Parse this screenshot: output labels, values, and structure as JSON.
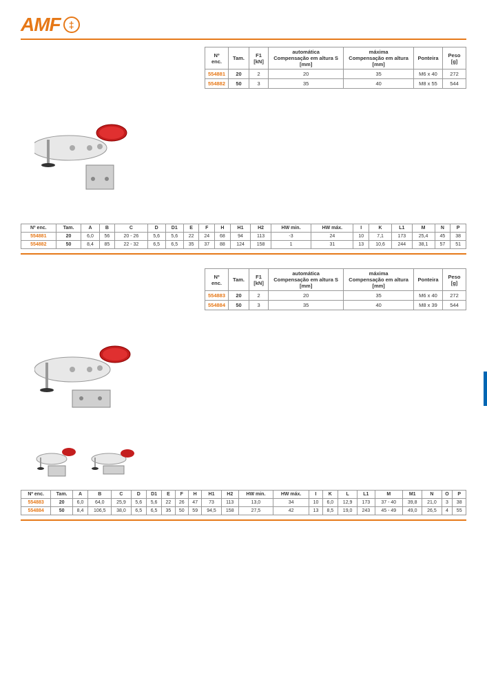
{
  "logo": {
    "text": "AMF"
  },
  "table1": {
    "headers": [
      "Nº enc.",
      "Tam.",
      "F1\n[kN]",
      "automática\nCompensação em altura S\n[mm]",
      "máxima\nCompensação em altura\n[mm]",
      "Ponteira",
      "Peso\n[g]"
    ],
    "rows": [
      [
        "554881",
        "20",
        "2",
        "20",
        "35",
        "M6 x 40",
        "272"
      ],
      [
        "554882",
        "50",
        "3",
        "35",
        "40",
        "M8 x 55",
        "544"
      ]
    ]
  },
  "table2": {
    "headers": [
      "Nº enc.",
      "Tam.",
      "A",
      "B",
      "C",
      "D",
      "D1",
      "E",
      "F",
      "H",
      "H1",
      "H2",
      "HW min.",
      "HW máx.",
      "I",
      "K",
      "L1",
      "M",
      "N",
      "P"
    ],
    "rows": [
      [
        "554881",
        "20",
        "6,0",
        "56",
        "20 - 26",
        "5,6",
        "5,6",
        "22",
        "24",
        "68",
        "94",
        "113",
        "-3",
        "24",
        "10",
        "7,1",
        "173",
        "25,4",
        "45",
        "38"
      ],
      [
        "554882",
        "50",
        "8,4",
        "85",
        "22 - 32",
        "6,5",
        "6,5",
        "35",
        "37",
        "88",
        "124",
        "158",
        "1",
        "31",
        "13",
        "10,6",
        "244",
        "38,1",
        "57",
        "51"
      ]
    ]
  },
  "table3": {
    "headers": [
      "Nº enc.",
      "Tam.",
      "F1\n[kN]",
      "automática\nCompensação em altura S\n[mm]",
      "máxima\nCompensação em altura\n[mm]",
      "Ponteira",
      "Peso\n[g]"
    ],
    "rows": [
      [
        "554883",
        "20",
        "2",
        "20",
        "35",
        "M6 x 40",
        "272"
      ],
      [
        "554884",
        "50",
        "3",
        "35",
        "40",
        "M8 x 39",
        "544"
      ]
    ]
  },
  "table4": {
    "headers": [
      "Nº enc.",
      "Tam.",
      "A",
      "B",
      "C",
      "D",
      "D1",
      "E",
      "F",
      "H",
      "H1",
      "H2",
      "HW min.",
      "HW máx.",
      "I",
      "K",
      "L",
      "L1",
      "M",
      "M1",
      "N",
      "O",
      "P"
    ],
    "rows": [
      [
        "554883",
        "20",
        "6,0",
        "64,0",
        "25,9",
        "5,6",
        "5,6",
        "22",
        "26",
        "47",
        "73",
        "113",
        "13,0",
        "34",
        "10",
        "6,0",
        "12,9",
        "173",
        "37 - 40",
        "39,8",
        "21,0",
        "3",
        "38"
      ],
      [
        "554884",
        "50",
        "8,4",
        "106,5",
        "38,0",
        "6,5",
        "6,5",
        "35",
        "50",
        "59",
        "94,5",
        "158",
        "27,5",
        "42",
        "13",
        "8,5",
        "19,0",
        "243",
        "45 - 49",
        "49,0",
        "26,5",
        "4",
        "55"
      ]
    ]
  },
  "colors": {
    "orange": "#e67817",
    "blue": "#0066b3",
    "border": "#999999"
  }
}
